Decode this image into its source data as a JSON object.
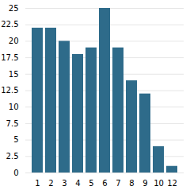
{
  "chart_data": {
    "type": "bar",
    "categories": [
      "1",
      "2",
      "3",
      "4",
      "5",
      "6",
      "7",
      "8",
      "9",
      "10",
      "12"
    ],
    "values": [
      22,
      22,
      20,
      18,
      19,
      25,
      19,
      14,
      12,
      4,
      1
    ],
    "color": "#2e6b8a",
    "ylim": [
      0,
      25
    ],
    "yticks": [
      0,
      2.5,
      5,
      7.5,
      10,
      12.5,
      15,
      17.5,
      20,
      22.5,
      25
    ],
    "grid": true
  }
}
